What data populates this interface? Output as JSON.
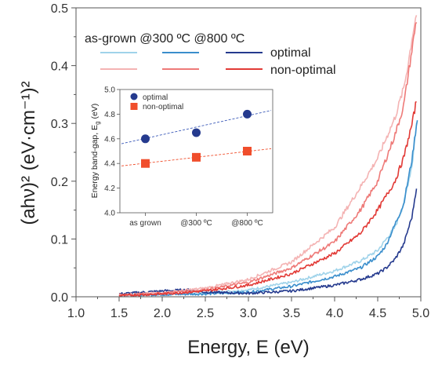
{
  "chart_data": [
    {
      "type": "line",
      "xlabel": "Energy, E (eV)",
      "ylabel": "(ahν)² (eV·cm⁻¹)²",
      "xlim": [
        1.0,
        5.0
      ],
      "ylim": [
        0.0,
        0.5
      ],
      "xticks": [
        "1.0",
        "1.5",
        "2.0",
        "2.5",
        "3.0",
        "3.5",
        "4.0",
        "4.5",
        "5.0"
      ],
      "yticks": [
        "0.0",
        "0.1",
        "0.2",
        "0.3",
        "0.4",
        "0.5"
      ],
      "grid": false,
      "legend": {
        "header": "as-grown @300 ºC @800 ºC",
        "rows": [
          "optimal",
          "non-optimal"
        ],
        "placement": "top-left"
      },
      "series": [
        {
          "group": "optimal",
          "condition": "as-grown",
          "color": "#9fd3ea",
          "x": [
            1.5,
            2.0,
            2.5,
            3.0,
            3.5,
            4.0,
            4.3,
            4.5,
            4.7,
            4.8,
            4.9,
            4.95
          ],
          "y": [
            0.003,
            0.004,
            0.006,
            0.012,
            0.025,
            0.045,
            0.062,
            0.08,
            0.12,
            0.16,
            0.23,
            0.3
          ]
        },
        {
          "group": "optimal",
          "condition": "@300 ºC",
          "color": "#3a8ecc",
          "x": [
            1.5,
            2.0,
            2.5,
            3.0,
            3.5,
            4.0,
            4.3,
            4.5,
            4.6,
            4.7,
            4.8,
            4.9,
            4.96
          ],
          "y": [
            0.003,
            0.004,
            0.005,
            0.008,
            0.018,
            0.035,
            0.05,
            0.07,
            0.09,
            0.125,
            0.16,
            0.24,
            0.31
          ]
        },
        {
          "group": "optimal",
          "condition": "@800 ºC",
          "color": "#253a8e",
          "x": [
            1.5,
            2.0,
            2.3,
            2.5,
            3.0,
            3.5,
            4.0,
            4.3,
            4.5,
            4.6,
            4.7,
            4.8,
            4.9,
            4.95
          ],
          "y": [
            0.005,
            0.01,
            0.012,
            0.008,
            0.006,
            0.01,
            0.02,
            0.03,
            0.04,
            0.05,
            0.065,
            0.09,
            0.14,
            0.19
          ]
        },
        {
          "group": "non-optimal",
          "condition": "as-grown",
          "color": "#f4b3b3",
          "x": [
            1.5,
            2.0,
            2.5,
            3.0,
            3.5,
            4.0,
            4.3,
            4.5,
            4.7,
            4.8,
            4.85,
            4.9,
            4.95
          ],
          "y": [
            0.003,
            0.007,
            0.015,
            0.03,
            0.06,
            0.12,
            0.19,
            0.24,
            0.31,
            0.36,
            0.4,
            0.45,
            0.49
          ]
        },
        {
          "group": "non-optimal",
          "condition": "@300 ºC",
          "color": "#ee7a78",
          "x": [
            1.5,
            2.0,
            2.5,
            3.0,
            3.5,
            4.0,
            4.3,
            4.5,
            4.7,
            4.8,
            4.85,
            4.9,
            4.95
          ],
          "y": [
            0.003,
            0.006,
            0.012,
            0.025,
            0.05,
            0.095,
            0.15,
            0.2,
            0.28,
            0.33,
            0.38,
            0.43,
            0.48
          ]
        },
        {
          "group": "non-optimal",
          "condition": "@800 ºC",
          "color": "#e23a36",
          "x": [
            1.5,
            2.0,
            2.5,
            3.0,
            3.5,
            4.0,
            4.3,
            4.5,
            4.7,
            4.8,
            4.9,
            4.95
          ],
          "y": [
            0.002,
            0.005,
            0.01,
            0.02,
            0.04,
            0.075,
            0.11,
            0.15,
            0.2,
            0.24,
            0.3,
            0.34
          ]
        }
      ]
    },
    {
      "type": "scatter",
      "inset": true,
      "ylabel": "Energy band-gap, E",
      "ylabel_sub": "g",
      "ylabel_unit": " (eV)",
      "categories": [
        "as grown",
        "@300 ºC",
        "@800 ºC"
      ],
      "ylim": [
        4.0,
        5.0
      ],
      "yticks": [
        "4.0",
        "4.2",
        "4.4",
        "4.6",
        "4.8",
        "5.0"
      ],
      "series": [
        {
          "name": "optimal",
          "marker": "circle",
          "color": "#253a8e",
          "values": [
            4.6,
            4.65,
            4.8
          ]
        },
        {
          "name": "non-optimal",
          "marker": "square",
          "color": "#f04e2c",
          "values": [
            4.4,
            4.45,
            4.5
          ]
        }
      ],
      "fits": [
        {
          "series": "optimal",
          "color": "#3a59b8",
          "start": 4.56,
          "end": 4.83
        },
        {
          "series": "non-optimal",
          "color": "#f04e2c",
          "start": 4.38,
          "end": 4.52
        }
      ]
    }
  ]
}
